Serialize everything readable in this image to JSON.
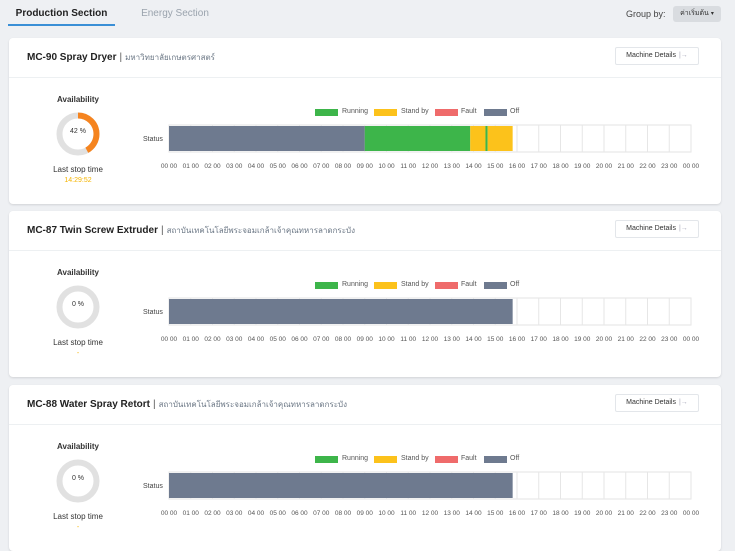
{
  "tabs": [
    {
      "label": "Production Section",
      "active": true
    },
    {
      "label": "Energy Section",
      "active": false
    }
  ],
  "group_by": {
    "label": "Group by:",
    "value": "ค่าเริ่มต้น"
  },
  "legend": [
    {
      "label": "Running",
      "color": "#3db54a"
    },
    {
      "label": "Stand by",
      "color": "#fcc21b"
    },
    {
      "label": "Fault",
      "color": "#ef6b6b"
    },
    {
      "label": "Off",
      "color": "#6e7a8f"
    }
  ],
  "hour_ticks": [
    "00 00",
    "01 00",
    "02 00",
    "03 00",
    "04 00",
    "05 00",
    "06 00",
    "07 00",
    "08 00",
    "09 00",
    "10 00",
    "11 00",
    "12 00",
    "13 00",
    "14 00",
    "15 00",
    "16 00",
    "17 00",
    "18 00",
    "19 00",
    "20 00",
    "21 00",
    "22 00",
    "23 00",
    "00 00"
  ],
  "machines": [
    {
      "name": "MC-90 Spray Dryer",
      "org": "มหาวิทยาลัยเกษตรศาสตร์",
      "details_label": "Machine Details",
      "availability_label": "Availability",
      "availability": 42,
      "availability_text": "42 %",
      "last_stop_label": "Last stop time",
      "last_stop_time": "14:29:52",
      "status_label": "Status",
      "segments": [
        {
          "state": "Off",
          "start": 0,
          "end": 9.0
        },
        {
          "state": "Running",
          "start": 9.0,
          "end": 13.85
        },
        {
          "state": "Stand by",
          "start": 13.85,
          "end": 14.55
        },
        {
          "state": "Running",
          "start": 14.55,
          "end": 14.65
        },
        {
          "state": "Stand by",
          "start": 14.65,
          "end": 15.8
        }
      ]
    },
    {
      "name": "MC-87 Twin Screw Extruder",
      "org": "สถาบันเทคโนโลยีพระจอมเกล้าเจ้าคุณทหารลาดกระบัง",
      "details_label": "Machine Details",
      "availability_label": "Availability",
      "availability": 0,
      "availability_text": "0 %",
      "last_stop_label": "Last stop time",
      "last_stop_time": "-",
      "status_label": "Status",
      "segments": [
        {
          "state": "Off",
          "start": 0,
          "end": 15.8
        }
      ]
    },
    {
      "name": "MC-88 Water Spray Retort",
      "org": "สถาบันเทคโนโลยีพระจอมเกล้าเจ้าคุณทหารลาดกระบัง",
      "details_label": "Machine Details",
      "availability_label": "Availability",
      "availability": 0,
      "availability_text": "0 %",
      "last_stop_label": "Last stop time",
      "last_stop_time": "-",
      "status_label": "Status",
      "segments": [
        {
          "state": "Off",
          "start": 0,
          "end": 15.8
        }
      ]
    }
  ]
}
